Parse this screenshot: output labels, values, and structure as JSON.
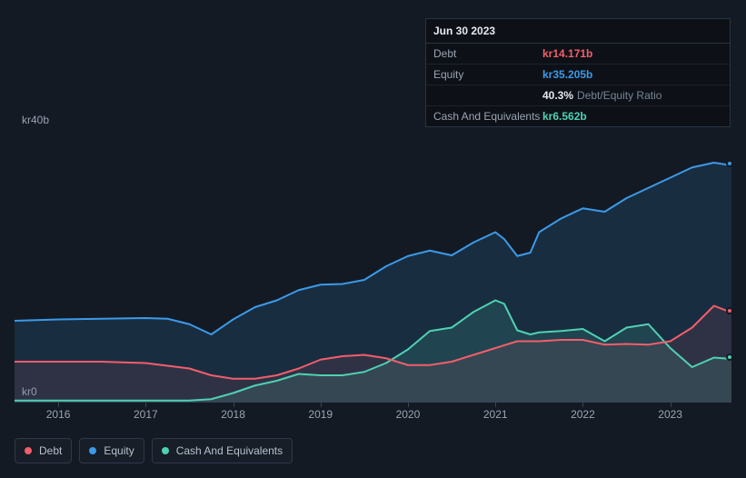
{
  "tooltip": {
    "date": "Jun 30 2023",
    "rows": [
      {
        "label": "Debt",
        "value": "kr14.171b",
        "color": "#f25e6b"
      },
      {
        "label": "Equity",
        "value": "kr35.205b",
        "color": "#3c9ae8"
      },
      {
        "label": "",
        "value": "40.3%",
        "extra": "Debt/Equity Ratio",
        "color": "#e6e9ee"
      },
      {
        "label": "Cash And Equivalents",
        "value": "kr6.562b",
        "color": "#4fd1b3"
      }
    ]
  },
  "chart": {
    "type": "line-area",
    "background": "#131a24",
    "plot_fill_top": "#1d2836",
    "plot_fill_bottom": "#131a24",
    "y_axis": {
      "min": 0,
      "max": 40,
      "unit_prefix": "kr",
      "unit_suffix": "b",
      "labels": [
        "kr40b",
        "kr0"
      ]
    },
    "x_axis": {
      "min": 2015.5,
      "max": 2023.7,
      "ticks": [
        2016,
        2017,
        2018,
        2019,
        2020,
        2021,
        2022,
        2023
      ],
      "tick_labels": [
        "2016",
        "2017",
        "2018",
        "2019",
        "2020",
        "2021",
        "2022",
        "2023"
      ]
    },
    "series": [
      {
        "name": "Equity",
        "color": "#3c9ae8",
        "fill": "rgba(60,154,232,0.15)",
        "line_width": 2,
        "data": [
          [
            2015.5,
            12.0
          ],
          [
            2016.0,
            12.2
          ],
          [
            2016.5,
            12.3
          ],
          [
            2017.0,
            12.4
          ],
          [
            2017.25,
            12.3
          ],
          [
            2017.5,
            11.5
          ],
          [
            2017.75,
            10.0
          ],
          [
            2018.0,
            12.2
          ],
          [
            2018.25,
            14.0
          ],
          [
            2018.5,
            15.0
          ],
          [
            2018.75,
            16.5
          ],
          [
            2019.0,
            17.3
          ],
          [
            2019.25,
            17.4
          ],
          [
            2019.5,
            18.0
          ],
          [
            2019.75,
            20.0
          ],
          [
            2020.0,
            21.5
          ],
          [
            2020.25,
            22.3
          ],
          [
            2020.5,
            21.6
          ],
          [
            2020.75,
            23.5
          ],
          [
            2021.0,
            25.0
          ],
          [
            2021.1,
            24.0
          ],
          [
            2021.25,
            21.5
          ],
          [
            2021.4,
            22.0
          ],
          [
            2021.5,
            25.0
          ],
          [
            2021.75,
            27.0
          ],
          [
            2022.0,
            28.5
          ],
          [
            2022.25,
            28.0
          ],
          [
            2022.5,
            30.0
          ],
          [
            2022.75,
            31.5
          ],
          [
            2023.0,
            33.0
          ],
          [
            2023.25,
            34.5
          ],
          [
            2023.5,
            35.2
          ],
          [
            2023.7,
            34.8
          ]
        ]
      },
      {
        "name": "Cash And Equivalents",
        "color": "#4fd1b3",
        "fill": "rgba(79,209,179,0.14)",
        "line_width": 2,
        "data": [
          [
            2015.5,
            0.3
          ],
          [
            2016.0,
            0.3
          ],
          [
            2016.5,
            0.3
          ],
          [
            2017.0,
            0.3
          ],
          [
            2017.5,
            0.3
          ],
          [
            2017.75,
            0.5
          ],
          [
            2018.0,
            1.4
          ],
          [
            2018.25,
            2.5
          ],
          [
            2018.5,
            3.2
          ],
          [
            2018.75,
            4.2
          ],
          [
            2019.0,
            4.0
          ],
          [
            2019.25,
            4.0
          ],
          [
            2019.5,
            4.5
          ],
          [
            2019.75,
            5.8
          ],
          [
            2020.0,
            7.8
          ],
          [
            2020.25,
            10.5
          ],
          [
            2020.5,
            11.0
          ],
          [
            2020.75,
            13.3
          ],
          [
            2021.0,
            15.0
          ],
          [
            2021.1,
            14.5
          ],
          [
            2021.25,
            10.6
          ],
          [
            2021.4,
            10.0
          ],
          [
            2021.5,
            10.3
          ],
          [
            2021.75,
            10.5
          ],
          [
            2022.0,
            10.8
          ],
          [
            2022.25,
            9.0
          ],
          [
            2022.5,
            11.0
          ],
          [
            2022.75,
            11.5
          ],
          [
            2023.0,
            8.0
          ],
          [
            2023.25,
            5.2
          ],
          [
            2023.5,
            6.6
          ],
          [
            2023.7,
            6.4
          ]
        ]
      },
      {
        "name": "Debt",
        "color": "#f25e6b",
        "fill": "rgba(242,94,107,0.10)",
        "line_width": 2,
        "data": [
          [
            2015.5,
            6.0
          ],
          [
            2016.0,
            6.0
          ],
          [
            2016.5,
            6.0
          ],
          [
            2017.0,
            5.8
          ],
          [
            2017.5,
            5.0
          ],
          [
            2017.75,
            4.0
          ],
          [
            2018.0,
            3.5
          ],
          [
            2018.25,
            3.5
          ],
          [
            2018.5,
            4.0
          ],
          [
            2018.75,
            5.0
          ],
          [
            2019.0,
            6.3
          ],
          [
            2019.25,
            6.8
          ],
          [
            2019.5,
            7.0
          ],
          [
            2019.75,
            6.5
          ],
          [
            2020.0,
            5.5
          ],
          [
            2020.25,
            5.5
          ],
          [
            2020.5,
            6.0
          ],
          [
            2020.75,
            7.0
          ],
          [
            2021.0,
            8.0
          ],
          [
            2021.25,
            9.0
          ],
          [
            2021.5,
            9.0
          ],
          [
            2021.75,
            9.2
          ],
          [
            2022.0,
            9.2
          ],
          [
            2022.25,
            8.5
          ],
          [
            2022.5,
            8.6
          ],
          [
            2022.75,
            8.5
          ],
          [
            2023.0,
            9.0
          ],
          [
            2023.25,
            11.0
          ],
          [
            2023.5,
            14.2
          ],
          [
            2023.7,
            13.2
          ]
        ]
      }
    ],
    "legend": [
      {
        "label": "Debt",
        "color": "#f25e6b"
      },
      {
        "label": "Equity",
        "color": "#3c9ae8"
      },
      {
        "label": "Cash And Equivalents",
        "color": "#4fd1b3"
      }
    ]
  }
}
